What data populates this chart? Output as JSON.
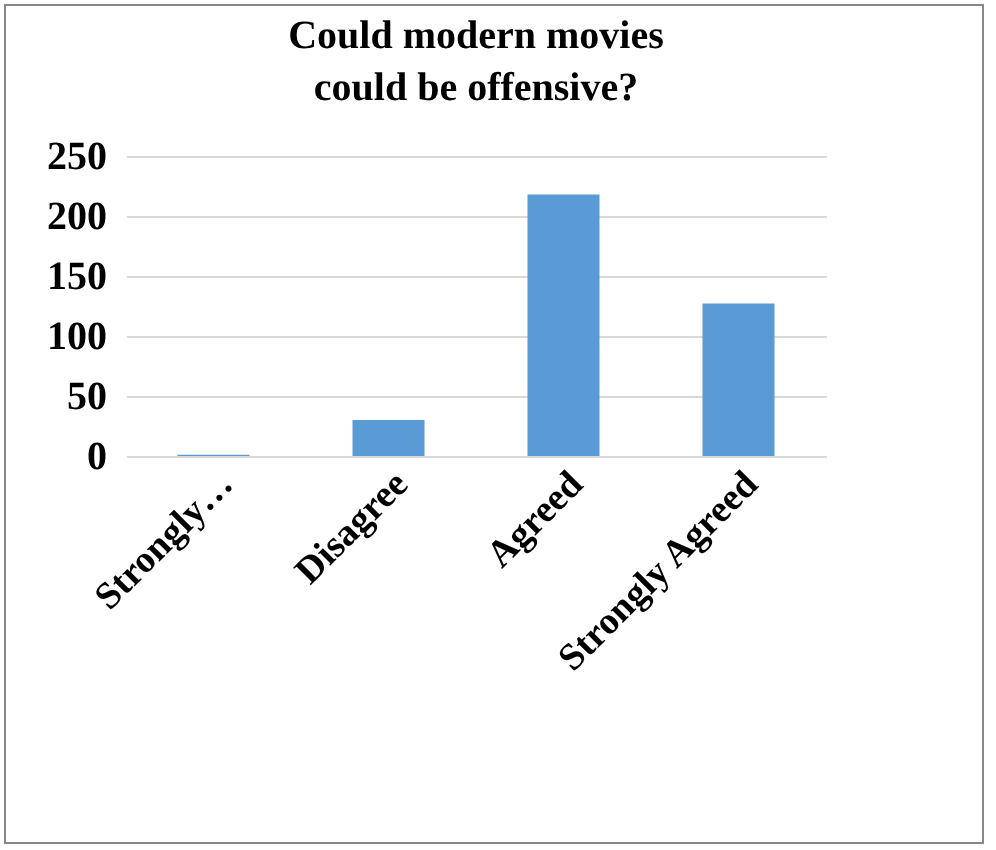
{
  "chart_data": {
    "type": "bar",
    "title": "Could modern movies could be offensive?",
    "categories": [
      "Strongly…",
      "Disagree",
      "Agreed",
      "Strongly Agreed"
    ],
    "values": [
      1,
      30,
      218,
      127
    ],
    "color": "#5b9bd5",
    "ylim": [
      0,
      250
    ],
    "yticks": [
      0,
      50,
      100,
      150,
      200,
      250
    ],
    "grid": "y"
  }
}
